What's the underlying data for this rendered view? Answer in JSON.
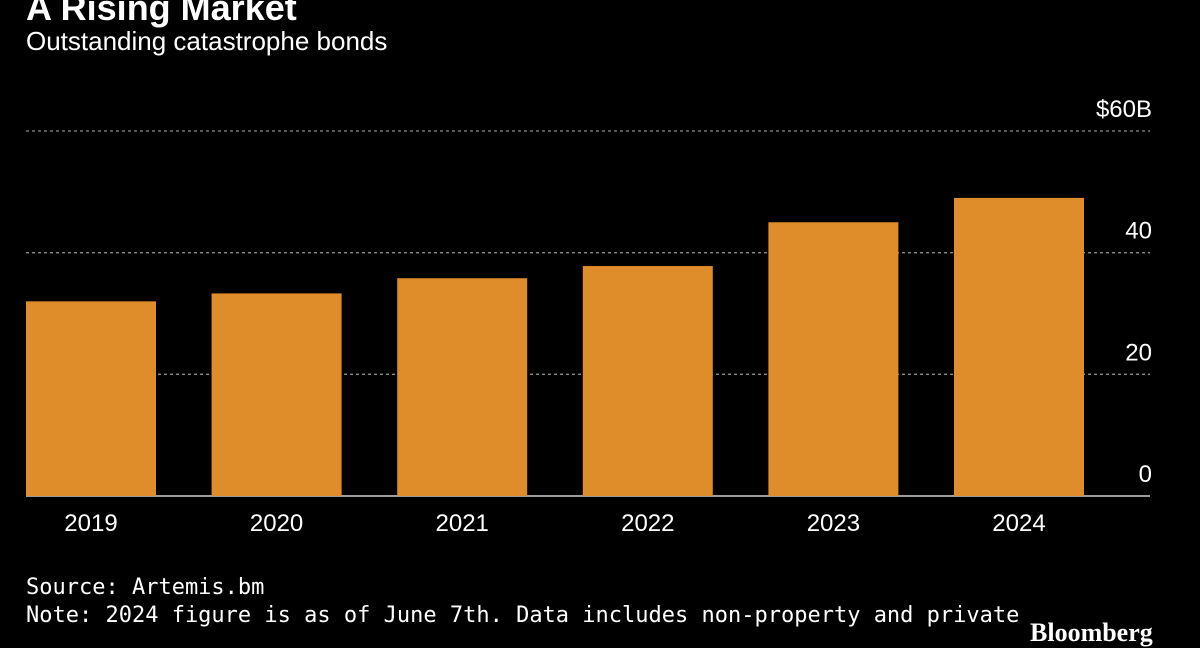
{
  "header": {
    "title": "A Rising Market",
    "subtitle": "Outstanding catastrophe bonds"
  },
  "footer": {
    "source": "Source: Artemis.bm",
    "note": "Note: 2024 figure is as of June 7th. Data includes non-property and private",
    "logo": "Bloomberg"
  },
  "colors": {
    "background": "#000000",
    "bar": "#DF8C2A",
    "gridline": "#8a8a8a",
    "text": "#ffffff"
  },
  "chart_data": {
    "type": "bar",
    "title": "A Rising Market",
    "subtitle": "Outstanding catastrophe bonds",
    "categories": [
      "2019",
      "2020",
      "2021",
      "2022",
      "2023",
      "2024"
    ],
    "values": [
      32,
      33.3,
      35.8,
      37.8,
      45,
      49
    ],
    "xlabel": "",
    "ylabel": "",
    "ylim": [
      0,
      60
    ],
    "yticks": [
      0,
      20,
      40,
      60
    ],
    "ytick_labels": [
      "0",
      "20",
      "40",
      "$60B"
    ],
    "y_axis_position": "right",
    "grid": true,
    "grid_style": "dotted",
    "legend": false
  }
}
